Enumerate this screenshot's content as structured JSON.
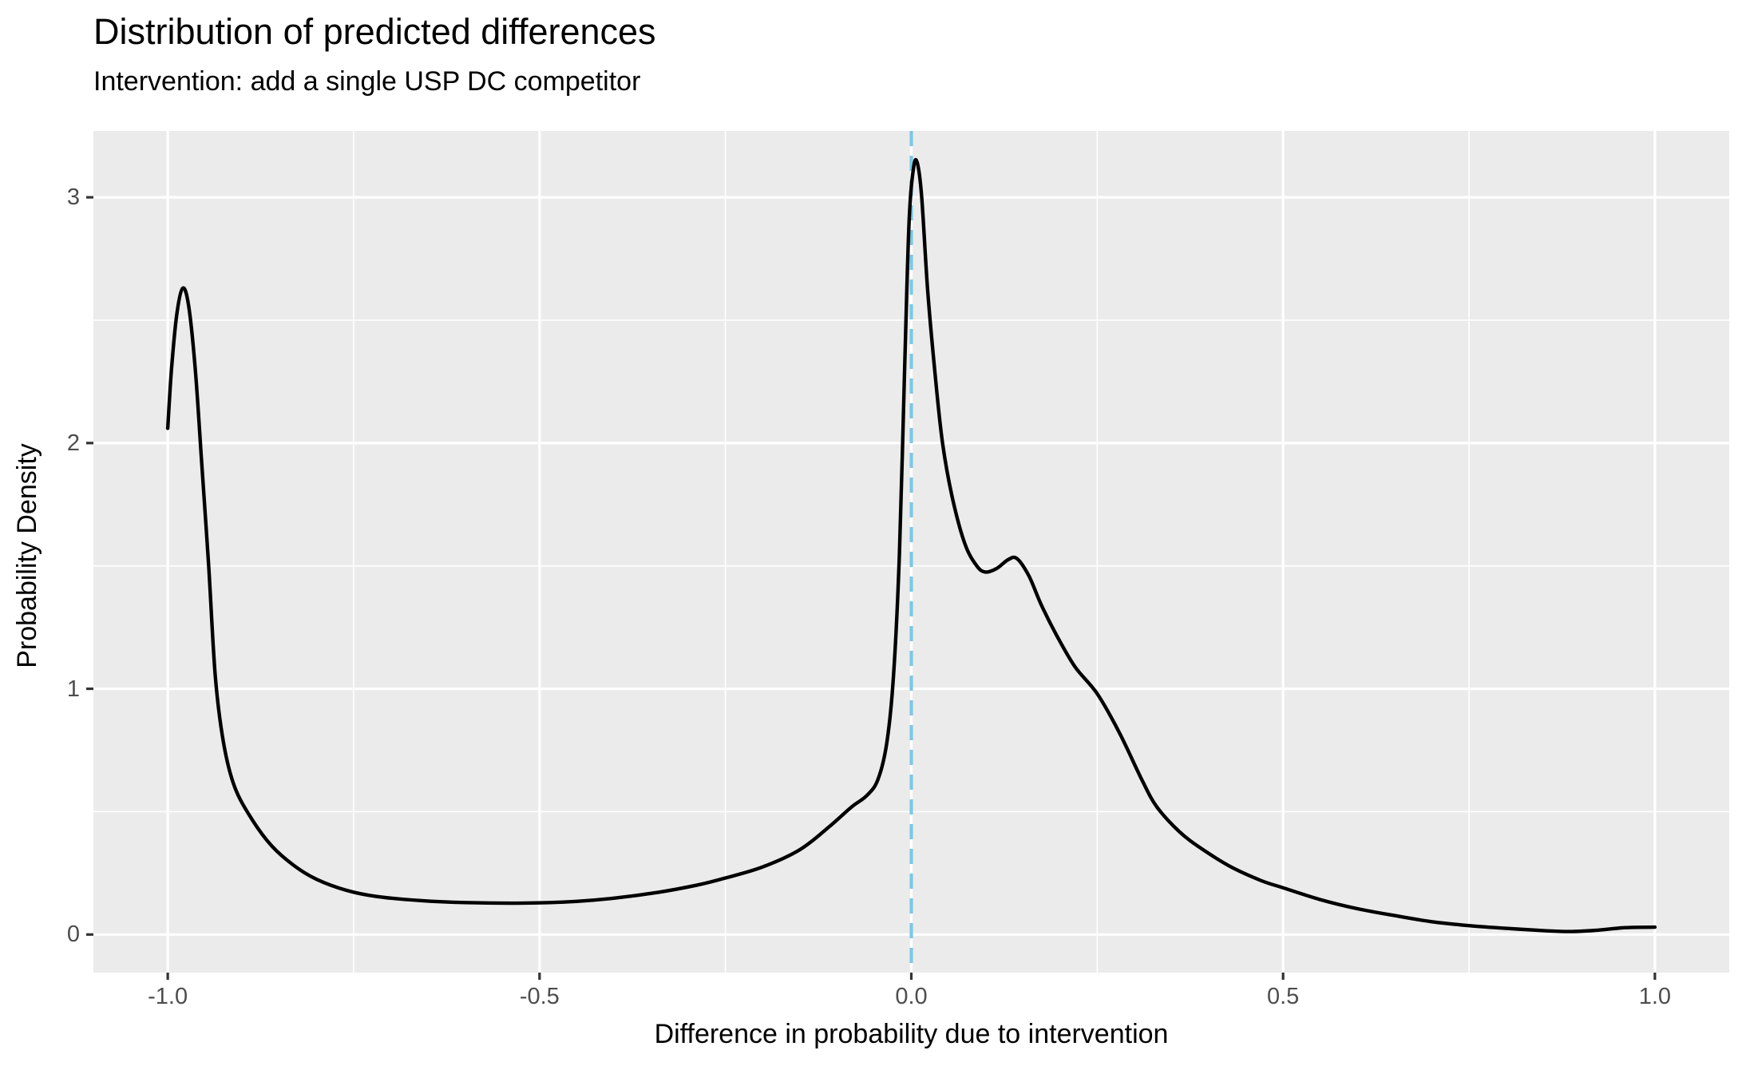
{
  "header": {
    "title": "Distribution of predicted differences",
    "subtitle": "Intervention: add a single USP DC competitor"
  },
  "colors": {
    "figure_background": "#FFFFFF",
    "panel_background": "#EBEBEB",
    "grid_major": "#FFFFFF",
    "grid_minor": "#FFFFFF",
    "curve": "#000000",
    "reference_line": "#7CC7E8",
    "tick_text": "#4D4D4D",
    "tick_mark": "#333333",
    "title_text": "#000000"
  },
  "chart_data": {
    "type": "line",
    "subtype": "density",
    "title": "Distribution of predicted differences",
    "subtitle": "Intervention: add a single USP DC competitor",
    "xlabel": "Difference in probability due to intervention",
    "ylabel": "Probability Density",
    "grid": "on",
    "legend": "none",
    "x_axis": {
      "label": "Difference in probability due to intervention",
      "domain": [
        -1.1,
        1.1
      ],
      "tick_values": [
        -1.0,
        -0.5,
        0.0,
        0.5,
        1.0
      ],
      "tick_labels": [
        "-1.0",
        "-0.5",
        "0.0",
        "0.5",
        "1.0"
      ],
      "minor_values": [
        -0.75,
        -0.25,
        0.25,
        0.75
      ]
    },
    "y_axis": {
      "label": "Probability Density",
      "domain": [
        -0.155,
        3.27
      ],
      "tick_values": [
        0,
        1,
        2,
        3
      ],
      "tick_labels": [
        "0",
        "1",
        "2",
        "3"
      ],
      "minor_values": [
        0.5,
        1.5,
        2.5
      ]
    },
    "reference_line": {
      "x": 0.0,
      "style": "dashed",
      "color": "#7CC7E8"
    },
    "series": [
      {
        "name": "predicted-difference-density",
        "color": "#000000",
        "points": [
          [
            -1.0,
            2.06
          ],
          [
            -0.995,
            2.3
          ],
          [
            -0.988,
            2.52
          ],
          [
            -0.98,
            2.63
          ],
          [
            -0.972,
            2.56
          ],
          [
            -0.963,
            2.3
          ],
          [
            -0.955,
            1.95
          ],
          [
            -0.945,
            1.5
          ],
          [
            -0.936,
            1.05
          ],
          [
            -0.925,
            0.78
          ],
          [
            -0.91,
            0.6
          ],
          [
            -0.886,
            0.465
          ],
          [
            -0.86,
            0.36
          ],
          [
            -0.83,
            0.28
          ],
          [
            -0.8,
            0.225
          ],
          [
            -0.76,
            0.18
          ],
          [
            -0.72,
            0.155
          ],
          [
            -0.66,
            0.138
          ],
          [
            -0.6,
            0.13
          ],
          [
            -0.52,
            0.128
          ],
          [
            -0.45,
            0.135
          ],
          [
            -0.4,
            0.148
          ],
          [
            -0.34,
            0.172
          ],
          [
            -0.29,
            0.2
          ],
          [
            -0.25,
            0.23
          ],
          [
            -0.2,
            0.275
          ],
          [
            -0.15,
            0.345
          ],
          [
            -0.11,
            0.44
          ],
          [
            -0.08,
            0.52
          ],
          [
            -0.06,
            0.565
          ],
          [
            -0.045,
            0.63
          ],
          [
            -0.033,
            0.78
          ],
          [
            -0.024,
            1.05
          ],
          [
            -0.016,
            1.55
          ],
          [
            -0.009,
            2.3
          ],
          [
            -0.003,
            2.9
          ],
          [
            0.003,
            3.12
          ],
          [
            0.008,
            3.14
          ],
          [
            0.014,
            3.0
          ],
          [
            0.022,
            2.62
          ],
          [
            0.032,
            2.28
          ],
          [
            0.042,
            2.0
          ],
          [
            0.055,
            1.78
          ],
          [
            0.072,
            1.59
          ],
          [
            0.088,
            1.5
          ],
          [
            0.1,
            1.475
          ],
          [
            0.115,
            1.49
          ],
          [
            0.13,
            1.525
          ],
          [
            0.142,
            1.53
          ],
          [
            0.158,
            1.46
          ],
          [
            0.175,
            1.34
          ],
          [
            0.195,
            1.22
          ],
          [
            0.22,
            1.09
          ],
          [
            0.25,
            0.98
          ],
          [
            0.28,
            0.82
          ],
          [
            0.31,
            0.63
          ],
          [
            0.33,
            0.52
          ],
          [
            0.36,
            0.42
          ],
          [
            0.39,
            0.35
          ],
          [
            0.43,
            0.275
          ],
          [
            0.47,
            0.22
          ],
          [
            0.5,
            0.19
          ],
          [
            0.55,
            0.142
          ],
          [
            0.6,
            0.105
          ],
          [
            0.65,
            0.077
          ],
          [
            0.7,
            0.052
          ],
          [
            0.75,
            0.036
          ],
          [
            0.8,
            0.025
          ],
          [
            0.85,
            0.016
          ],
          [
            0.885,
            0.012
          ],
          [
            0.92,
            0.017
          ],
          [
            0.96,
            0.028
          ],
          [
            1.0,
            0.03
          ]
        ]
      }
    ]
  }
}
